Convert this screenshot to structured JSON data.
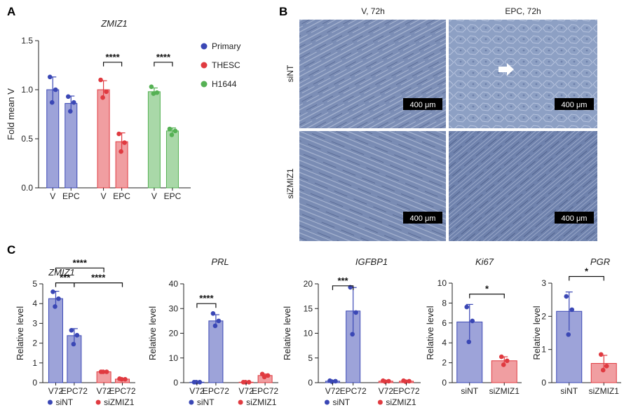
{
  "panel_labels": {
    "a": "A",
    "b": "B",
    "c": "C"
  },
  "colors": {
    "Primary": "#3a47b5",
    "Primary_fill": "#9da3d9",
    "THESC": "#e03a40",
    "THESC_fill": "#f09ea1",
    "H1644": "#55b154",
    "H1644_fill": "#a9d8a8",
    "siNT": "#3a47b5",
    "siNT_fill": "#9da3d9",
    "siZMIZ1": "#e03a40",
    "siZMIZ1_fill": "#f09ea1"
  },
  "chart_data": [
    {
      "id": "A",
      "type": "bar",
      "title": "ZMIZ1",
      "ylabel": "Fold mean V",
      "ylim": [
        0,
        1.5
      ],
      "yticks": [
        "0.0",
        "0.5",
        "1.0",
        "1.5"
      ],
      "legend": {
        "placement": "right",
        "entries": [
          "Primary",
          "THESC",
          "H1644"
        ]
      },
      "groups": [
        {
          "series": "Primary",
          "bars": [
            {
              "label": "V",
              "value": 1.0,
              "points": [
                1.13,
                1.0,
                0.87
              ]
            },
            {
              "label": "EPC",
              "value": 0.86,
              "points": [
                0.93,
                0.87,
                0.78
              ]
            }
          ]
        },
        {
          "series": "THESC",
          "bars": [
            {
              "label": "V",
              "value": 1.0,
              "points": [
                1.1,
                0.98,
                0.92
              ]
            },
            {
              "label": "EPC",
              "value": 0.47,
              "points": [
                0.55,
                0.46,
                0.37
              ]
            }
          ]
        },
        {
          "series": "H1644",
          "bars": [
            {
              "label": "V",
              "value": 0.98,
              "points": [
                1.03,
                0.97,
                0.96
              ]
            },
            {
              "label": "EPC",
              "value": 0.58,
              "points": [
                0.6,
                0.58,
                0.54
              ]
            }
          ]
        }
      ],
      "significance": [
        {
          "group": 1,
          "label": "****"
        },
        {
          "group": 2,
          "label": "****"
        }
      ]
    },
    {
      "id": "C1",
      "type": "bar",
      "title": "ZMIZ1",
      "ylabel": "Relative level",
      "ylim": [
        0,
        5
      ],
      "yticks": [
        "0",
        "1",
        "2",
        "3",
        "4",
        "5"
      ],
      "legend": {
        "placement": "bottom",
        "entries": [
          "siNT",
          "siZMIZ1"
        ]
      },
      "bars": [
        {
          "label": "V72",
          "series": "siNT",
          "value": 4.25,
          "points": [
            4.6,
            4.25,
            3.85
          ]
        },
        {
          "label": "EPC72",
          "series": "siNT",
          "value": 2.38,
          "points": [
            2.65,
            2.4,
            1.95
          ]
        },
        {
          "label": "V72",
          "series": "siZMIZ1",
          "value": 0.55,
          "points": [
            0.55,
            0.55,
            0.55
          ]
        },
        {
          "label": "EPC72",
          "series": "siZMIZ1",
          "value": 0.18,
          "points": [
            0.2,
            0.17,
            0.17
          ]
        }
      ],
      "significance": [
        {
          "from": 0,
          "to": 2,
          "label": "****",
          "level": 5.8
        },
        {
          "from": 0,
          "to": 1,
          "label": "***",
          "level": 5.05
        },
        {
          "from": 1,
          "to": 3,
          "label": "****",
          "level": 5.05
        }
      ]
    },
    {
      "id": "C2",
      "type": "bar",
      "title": "PRL",
      "ylabel": "Relative level",
      "ylim": [
        0,
        40
      ],
      "yticks": [
        "0",
        "10",
        "20",
        "30",
        "40"
      ],
      "legend": {
        "placement": "bottom",
        "entries": [
          "siNT",
          "siZMIZ1"
        ]
      },
      "bars": [
        {
          "label": "V72",
          "series": "siNT",
          "value": 0.2,
          "points": [
            0.2,
            0.2,
            0.2
          ]
        },
        {
          "label": "EPC72",
          "series": "siNT",
          "value": 25,
          "points": [
            28,
            25,
            23
          ]
        },
        {
          "label": "V72",
          "series": "siZMIZ1",
          "value": 0.2,
          "points": [
            0.2,
            0.2,
            0.2
          ]
        },
        {
          "label": "EPC72",
          "series": "siZMIZ1",
          "value": 2.9,
          "points": [
            3.5,
            2.9,
            2.3
          ]
        }
      ],
      "significance": [
        {
          "from": 0,
          "to": 1,
          "label": "****",
          "level": 32
        }
      ]
    },
    {
      "id": "C3",
      "type": "bar",
      "title": "IGFBP1",
      "ylabel": "Relative level",
      "ylim": [
        0,
        20
      ],
      "yticks": [
        "0",
        "5",
        "10",
        "15",
        "20"
      ],
      "legend": {
        "placement": "bottom",
        "entries": [
          "siNT",
          "siZMIZ1"
        ]
      },
      "bars": [
        {
          "label": "V72",
          "series": "siNT",
          "value": 0.3,
          "points": [
            0.4,
            0.3,
            0.2
          ]
        },
        {
          "label": "EPC72",
          "series": "siNT",
          "value": 14.5,
          "points": [
            19.3,
            14.2,
            9.8
          ]
        },
        {
          "label": "V72",
          "series": "siZMIZ1",
          "value": 0.3,
          "points": [
            0.4,
            0.3,
            0.2
          ]
        },
        {
          "label": "EPC72",
          "series": "siZMIZ1",
          "value": 0.3,
          "points": [
            0.4,
            0.3,
            0.2
          ]
        }
      ],
      "significance": [
        {
          "from": 0,
          "to": 1,
          "label": "***",
          "level": 19.6
        }
      ]
    },
    {
      "id": "C4",
      "type": "bar",
      "title": "Ki67",
      "ylabel": "Relative level",
      "ylim": [
        0,
        10
      ],
      "yticks": [
        "0",
        "2",
        "4",
        "6",
        "8",
        "10"
      ],
      "bars": [
        {
          "label": "siNT",
          "series": "siNT",
          "value": 6.1,
          "points": [
            7.6,
            6.2,
            4.1
          ]
        },
        {
          "label": "siZMIZ1",
          "series": "siZMIZ1",
          "value": 2.2,
          "points": [
            2.6,
            2.2,
            1.8
          ]
        }
      ],
      "significance": [
        {
          "from": 0,
          "to": 1,
          "label": "*",
          "level": 8.9
        }
      ]
    },
    {
      "id": "C5",
      "type": "bar",
      "title": "PGR",
      "ylabel": "Relative level",
      "ylim": [
        0,
        3
      ],
      "yticks": [
        "0",
        "1",
        "2",
        "3"
      ],
      "bars": [
        {
          "label": "siNT",
          "series": "siNT",
          "value": 2.15,
          "points": [
            2.6,
            2.2,
            1.45
          ]
        },
        {
          "label": "siZMIZ1",
          "series": "siZMIZ1",
          "value": 0.58,
          "points": [
            0.85,
            0.5,
            0.38
          ]
        }
      ],
      "significance": [
        {
          "from": 0,
          "to": 1,
          "label": "*",
          "level": 3.2
        }
      ]
    }
  ],
  "micrographs": {
    "col_headers": [
      "V, 72h",
      "EPC, 72h"
    ],
    "row_headers": [
      "siNT",
      "siZMIZ1"
    ],
    "scale_bar": "400 μm"
  }
}
